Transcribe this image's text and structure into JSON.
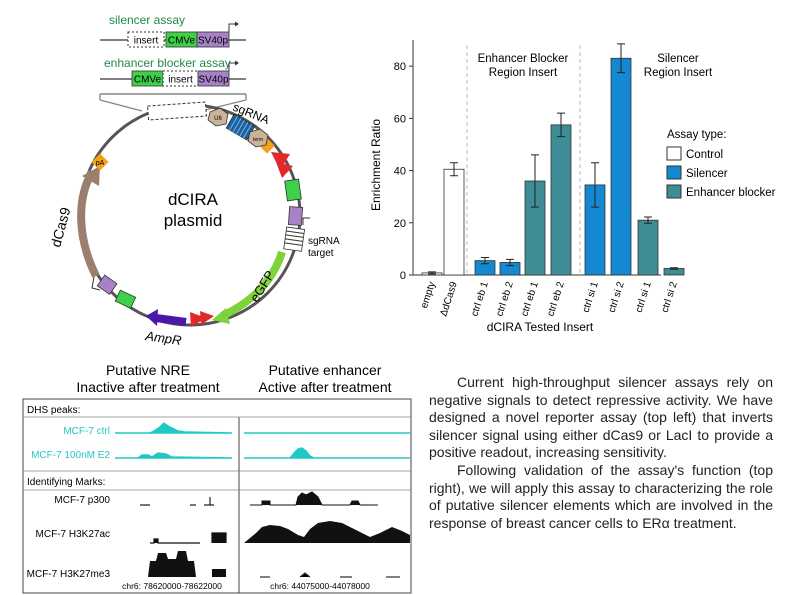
{
  "diagram": {
    "silencer_assay_label": "silencer assay",
    "enhancer_blocker_label": "enhancer blocker assay",
    "insert_label": "insert",
    "cmv_label": "CMVe",
    "sv40_label": "SV40p",
    "plasmid_name_1": "dCIRA",
    "plasmid_name_2": "plasmid",
    "sgrna_label": "sgRNA",
    "sgrna_target_1": "sgRNA",
    "sgrna_target_2": "target",
    "egfp_label": "eGFP",
    "ampr_label": "AmpR",
    "dcas9_label": "dCas9",
    "pa_label": "pA",
    "ter_label": "term",
    "u6_label": "U6",
    "colors": {
      "cmv": "#3fd04a",
      "sv40": "#a882c8",
      "dcas9": "#9a7f6e",
      "egfp": "#7ed23c",
      "ampr": "#4a17a8",
      "sgrna": "#1b5fa0",
      "red": "#e2282a",
      "pa": "#f4a11a"
    }
  },
  "chart_data": {
    "type": "bar",
    "ylabel": "Enrichment Ratio",
    "xlabel": "dCIRA Tested Insert",
    "ylim": [
      0,
      90
    ],
    "yticks": [
      0,
      20,
      40,
      60,
      80
    ],
    "categories": [
      "empty",
      "ΔdCas9",
      "ctrl eb 1",
      "ctrl eb 2",
      "ctrl eb 1",
      "ctrl eb 2",
      "ctrl si 1",
      "ctrl si 2",
      "ctrl si 1",
      "ctrl si 2"
    ],
    "values": [
      0.8,
      40.5,
      5.5,
      4.8,
      36,
      57.5,
      34.5,
      83,
      21,
      2.5
    ],
    "errors": [
      0.4,
      2.5,
      1.2,
      1.2,
      10,
      4.5,
      8.5,
      5.5,
      1.2,
      0.3
    ],
    "assay": [
      "Control",
      "Control",
      "Silencer",
      "Silencer",
      "Enhancer blocker",
      "Enhancer blocker",
      "Silencer",
      "Silencer",
      "Enhancer blocker",
      "Enhancer blocker"
    ],
    "region_labels": [
      {
        "line1": "Enhancer Blocker",
        "line2": "Region Insert"
      },
      {
        "line1": "Silencer",
        "line2": "Region Insert"
      }
    ],
    "legend": {
      "title": "Assay type:",
      "position": "right",
      "entries": [
        {
          "name": "Control",
          "color": "#ffffff"
        },
        {
          "name": "Silencer",
          "color": "#1488d0"
        },
        {
          "name": "Enhancer blocker",
          "color": "#3e8c96"
        }
      ]
    }
  },
  "tracks": {
    "col1_title_1": "Putative NRE",
    "col1_title_2": "Inactive after treatment",
    "col2_title_1": "Putative enhancer",
    "col2_title_2": "Active after treatment",
    "dhs_header": "DHS peaks:",
    "marks_header": "Identifying Marks:",
    "track_labels": [
      "MCF-7 ctrl",
      "MCF-7 100nM E2",
      "MCF-7 p300",
      "MCF-7 H3K27ac",
      "MCF-7 H3K27me3"
    ],
    "coord_left": "chr6: 78620000-78622000",
    "coord_right": "chr6: 44075000-44078000",
    "colors": {
      "dhs": "#22c8c4",
      "marks": "#111111"
    }
  },
  "text": {
    "paragraph_1": "Current high-throughput silencer assays rely on negative signals to detect repressive activity. We have designed a novel reporter assay (top left) that inverts silencer signal using either dCas9 or LacI to provide a positive readout, increasing sensitivity.",
    "paragraph_2": "Following validation of the assay's function (top right), we will apply this assay to characterizing the role of putative silencer elements which are involved in the response of breast cancer cells to ERα treatment."
  }
}
